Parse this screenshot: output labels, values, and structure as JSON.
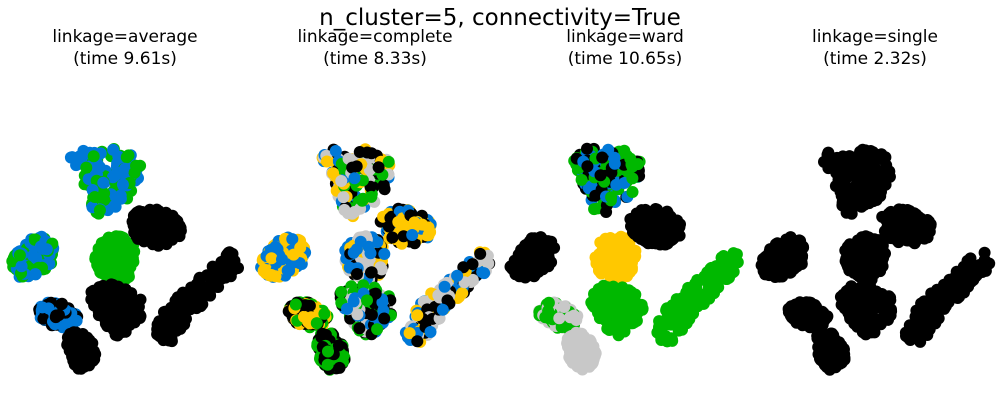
{
  "figure": {
    "suptitle": "n_cluster=5, connectivity=True",
    "palette": {
      "black": "#000000",
      "blue": "#0078d7",
      "green": "#00b800",
      "yellow": "#ffc800",
      "gray": "#c8c8c8"
    }
  },
  "chart_data": [
    {
      "type": "scatter",
      "title_line1": "linkage=average",
      "title_line2": "(time 9.61s)",
      "linkage": "average",
      "time": "9.61s",
      "axes": "off"
    },
    {
      "type": "scatter",
      "title_line1": "linkage=complete",
      "title_line2": "(time 8.33s)",
      "linkage": "complete",
      "time": "8.33s",
      "axes": "off"
    },
    {
      "type": "scatter",
      "title_line1": "linkage=ward",
      "title_line2": "(time 10.65s)",
      "linkage": "ward",
      "time": "10.65s",
      "axes": "off"
    },
    {
      "type": "scatter",
      "title_line1": "linkage=single",
      "title_line2": "(time 2.32s)",
      "linkage": "single",
      "time": "2.32s",
      "axes": "off"
    }
  ]
}
